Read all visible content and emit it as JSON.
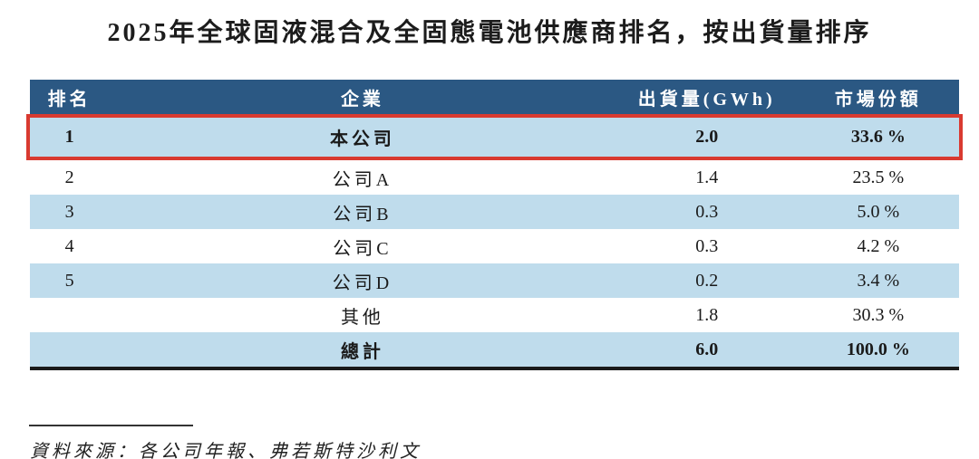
{
  "title": "2025年全球固液混合及全固態電池供應商排名，按出貨量排序",
  "table": {
    "headers": {
      "rank": "排名",
      "company": "企業",
      "shipment": "出貨量(GWh)",
      "share": "市場份額"
    },
    "rows": [
      {
        "rank": "1",
        "company": "本公司",
        "shipment": "2.0",
        "share": "33.6 %"
      },
      {
        "rank": "2",
        "company": "公司A",
        "shipment": "1.4",
        "share": "23.5 %"
      },
      {
        "rank": "3",
        "company": "公司B",
        "shipment": "0.3",
        "share": "5.0 %"
      },
      {
        "rank": "4",
        "company": "公司C",
        "shipment": "0.3",
        "share": "4.2 %"
      },
      {
        "rank": "5",
        "company": "公司D",
        "shipment": "0.2",
        "share": "3.4 %"
      },
      {
        "rank": "",
        "company": "其他",
        "shipment": "1.8",
        "share": "30.3 %"
      },
      {
        "rank": "",
        "company": "總計",
        "shipment": "6.0",
        "share": "100.0 %"
      }
    ]
  },
  "footnote": "資料來源：各公司年報、弗若斯特沙利文",
  "colors": {
    "header_bg": "#2B5883",
    "header_text": "#FFFFFF",
    "row_highlight_bg": "#BFDCEC",
    "highlight_border": "#D93A30",
    "bottom_rule": "#1A1A1A"
  }
}
